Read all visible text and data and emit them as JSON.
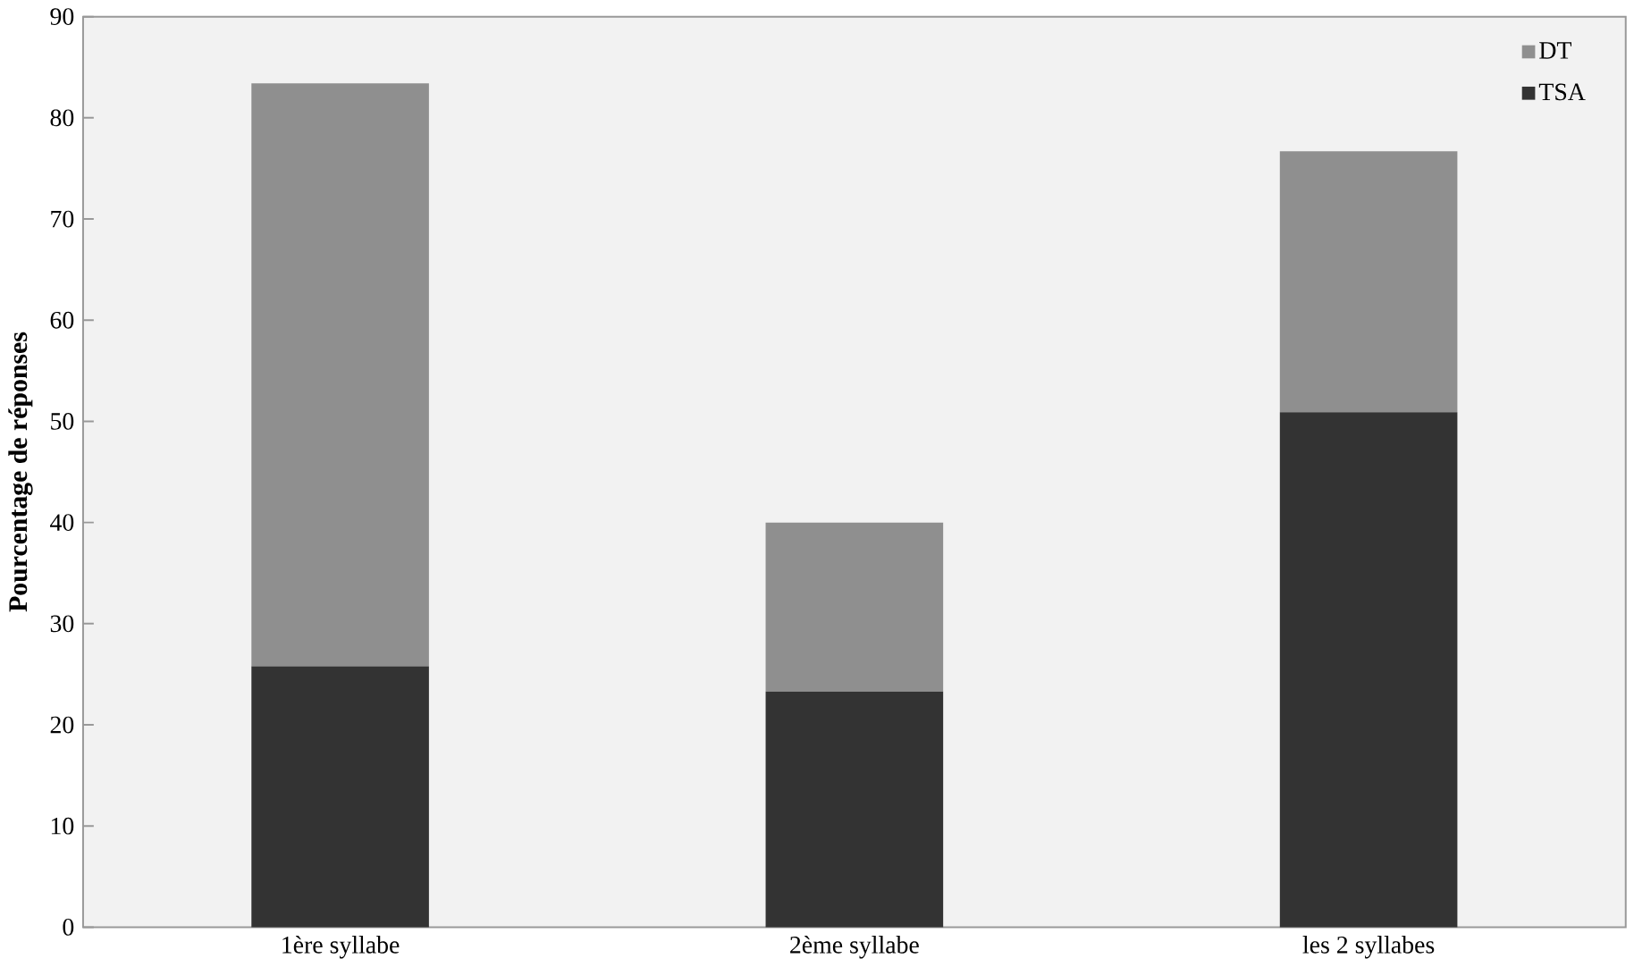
{
  "chart_data": {
    "type": "bar",
    "stacked": true,
    "ylabel": "Pourcentage de réponses",
    "categories": [
      "1ère syllabe",
      "2ème syllabe",
      "les 2 syllabes"
    ],
    "series": [
      {
        "name": "TSA",
        "color": "#333333",
        "values": [
          25.8,
          23.3,
          50.9
        ]
      },
      {
        "name": "DT",
        "color": "#8f8f8f",
        "values": [
          57.6,
          16.7,
          25.8
        ]
      }
    ],
    "ylim": [
      0,
      90
    ],
    "yticks": [
      0,
      10,
      20,
      30,
      40,
      50,
      60,
      70,
      80,
      90
    ],
    "grid": false,
    "legend": "top right"
  }
}
